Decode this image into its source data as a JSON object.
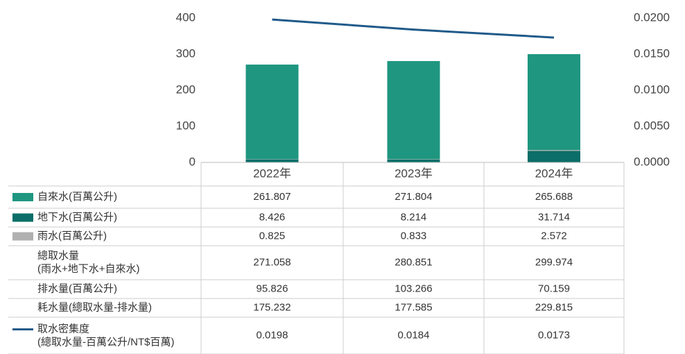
{
  "chart_data": {
    "type": "bar-line",
    "categories": [
      "2022年",
      "2023年",
      "2024年"
    ],
    "series": [
      {
        "name": "自來水(百萬公升)",
        "color": "#1f9680",
        "type": "bar",
        "values": [
          261.807,
          271.804,
          265.688
        ]
      },
      {
        "name": "地下水(百萬公升)",
        "color": "#0b6e68",
        "type": "bar",
        "values": [
          8.426,
          8.214,
          31.714
        ]
      },
      {
        "name": "雨水(百萬公升)",
        "color": "#b0b0b0",
        "type": "bar",
        "values": [
          0.825,
          0.833,
          2.572
        ]
      },
      {
        "name": "取水密集度",
        "unit": "(總取水量-百萬公升/NT$百萬)",
        "color": "#1f5a8a",
        "type": "line",
        "axis": "y2",
        "values": [
          0.0198,
          0.0184,
          0.0173
        ]
      }
    ],
    "table_rows": [
      {
        "name": [
          "總取水量",
          "(雨水+地下水+自來水)"
        ],
        "values": [
          271.058,
          280.851,
          299.974
        ]
      },
      {
        "name": [
          "排水量(百萬公升)"
        ],
        "values": [
          95.826,
          103.266,
          70.159
        ]
      },
      {
        "name": [
          "耗水量(總取水量-排水量)"
        ],
        "values": [
          175.232,
          177.585,
          229.815
        ]
      }
    ],
    "ylim": [
      0,
      400
    ],
    "yticks": [
      0,
      100,
      200,
      300,
      400
    ],
    "y2lim": [
      0,
      0.02
    ],
    "y2ticks": [
      {
        "value": 0,
        "label": "0.0000"
      },
      {
        "value": 0.005,
        "label": "0.0050"
      },
      {
        "value": 0.01,
        "label": "0.0100"
      },
      {
        "value": 0.015,
        "label": "0.0150"
      },
      {
        "value": 0.02,
        "label": "0.0200"
      }
    ]
  }
}
